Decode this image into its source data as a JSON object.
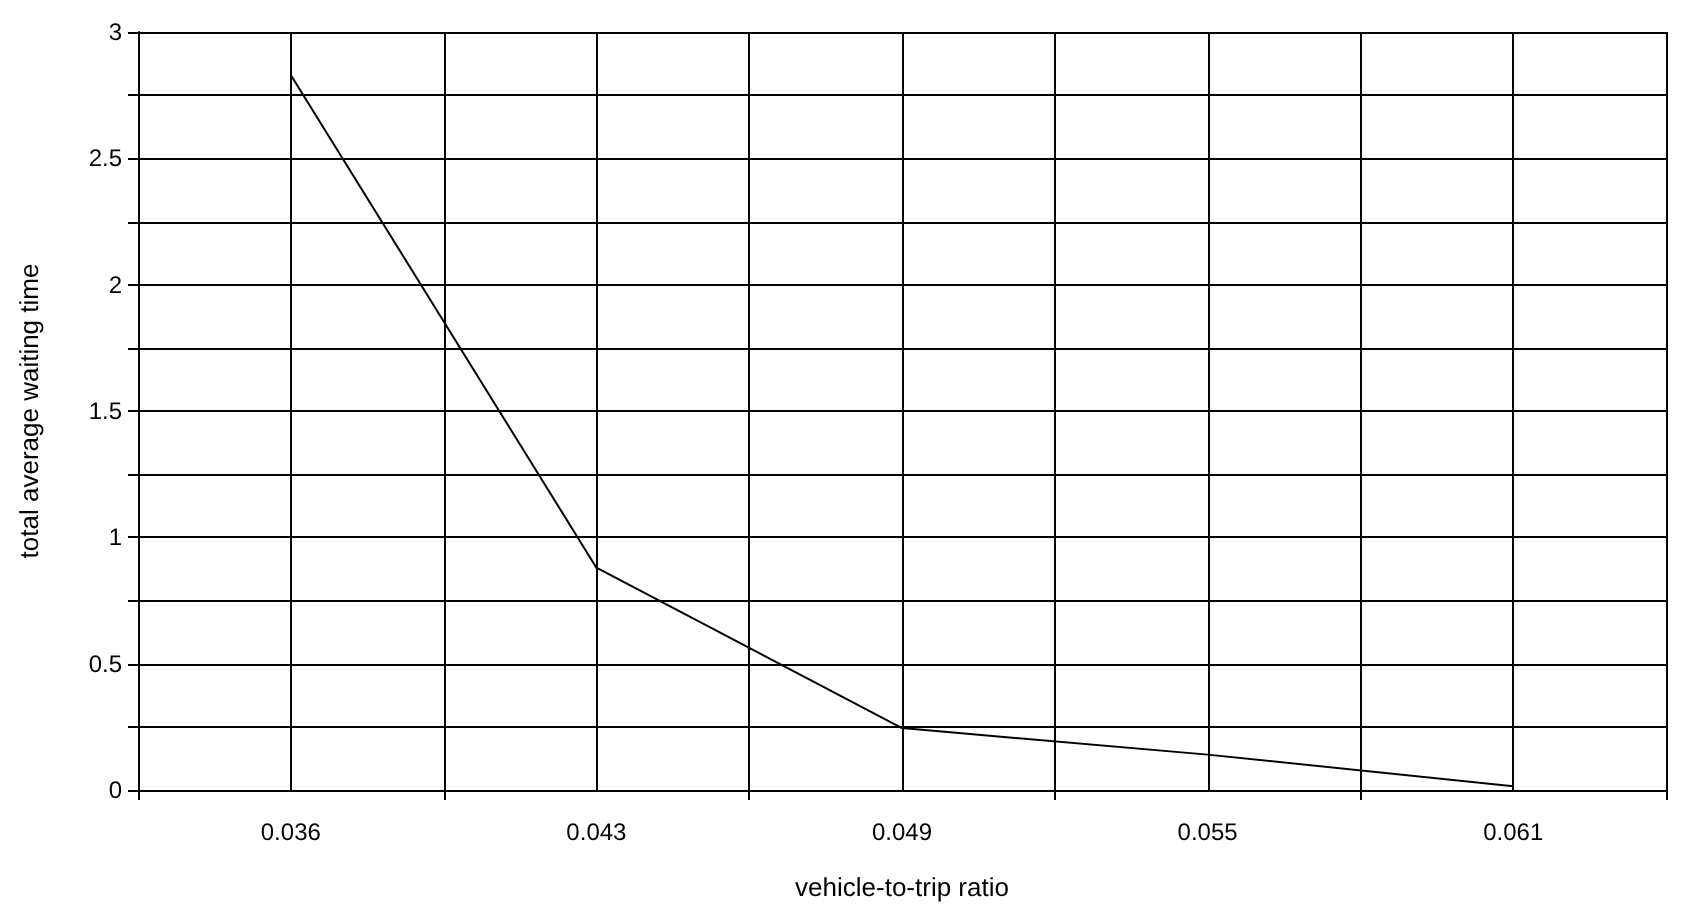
{
  "chart_data": {
    "type": "line",
    "xlabel": "vehicle-to-trip ratio",
    "ylabel": "total average waiting time",
    "categories": [
      "0.036",
      "0.043",
      "0.049",
      "0.055",
      "0.061"
    ],
    "series": [
      {
        "color": "#000000",
        "values": [
          2.83,
          0.88,
          0.245,
          0.14,
          0.015
        ]
      }
    ],
    "ylim": [
      0,
      3
    ],
    "yticks": [
      0,
      {
        "value": 0.25,
        "label": null
      },
      0.5,
      {
        "value": 0.75,
        "label": null
      },
      1,
      {
        "value": 1.25,
        "label": null
      },
      1.5,
      {
        "value": 1.75,
        "label": null
      },
      2,
      {
        "value": 2.25,
        "label": null
      },
      2.5,
      {
        "value": 2.75,
        "label": null
      },
      3
    ],
    "grid": true,
    "marker": "none",
    "line_style": "solid"
  }
}
